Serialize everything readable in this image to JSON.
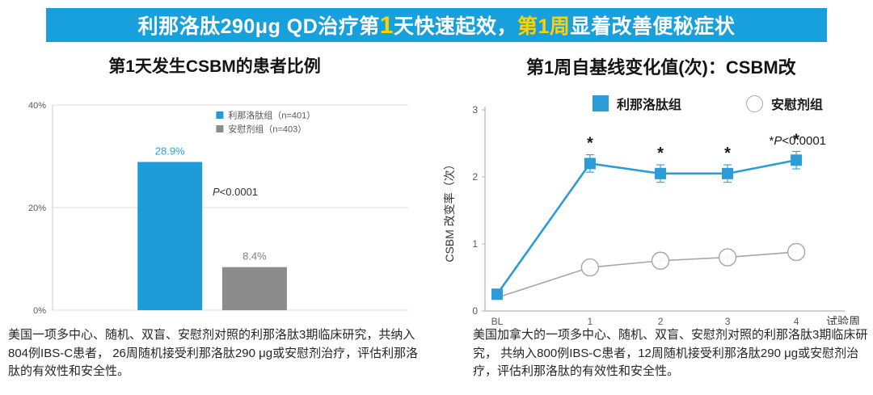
{
  "banner": {
    "bg": "#17A0DC",
    "text_color": "#FFFFFF",
    "highlight_color": "#FFD100",
    "segments": [
      {
        "text": "利那洛肽290μg QD治疗第",
        "highlight": false,
        "big": false
      },
      {
        "text": "1",
        "highlight": true,
        "big": true
      },
      {
        "text": "天快速起效，",
        "highlight": false,
        "big": false
      },
      {
        "text": "第1周",
        "highlight": true,
        "big": false
      },
      {
        "text": "显着改善便秘症状",
        "highlight": false,
        "big": false
      }
    ]
  },
  "left_chart": {
    "title": "第1天发生CSBM的患者比例",
    "footnote": "美国一项多中心、随机、双盲、安慰剂对照的利那洛肽3期临床研究，共纳入804例IBS-C患者， 26周随机接受利那洛肽290 μg或安慰剂治疗，评估利那洛肽的有效性和安全性。"
  },
  "right_chart": {
    "title": "第1周自基线变化值(次)：CSBM改",
    "footnote": "美国加拿大的一项多中心、随机、双盲、安慰剂对照的利那洛肽3期临床研究， 共纳入800例IBS-C患者，12周随机接受利那洛肽290 μg或安慰剂治疗，评估利那洛肽的有效性和安全性。"
  },
  "chart_data": [
    {
      "type": "bar",
      "title": "第1天发生CSBM的患者比例",
      "categories": [
        "利那洛肽组",
        "安慰剂组"
      ],
      "values": [
        28.9,
        8.4
      ],
      "value_labels": [
        "28.9%",
        "8.4%"
      ],
      "colors": [
        "#1E9CD8",
        "#8C8C8C"
      ],
      "label_colors": [
        "#2AA3DC",
        "#7F7F7F"
      ],
      "legend": [
        "利那洛肽组（n=401）",
        "安慰剂组（n=403）"
      ],
      "annotation": {
        "italic": "P",
        "rest": "<0.0001"
      },
      "yticks": [
        "0%",
        "20%",
        "40%"
      ],
      "ytick_values": [
        0,
        20,
        40
      ],
      "ylim": [
        0,
        40
      ],
      "xlabel": "",
      "ylabel": "",
      "grid": true,
      "legend_position": "top-center"
    },
    {
      "type": "line",
      "title": "第1周自基线变化值(次)：CSBM改",
      "x_categories": [
        "BL",
        "1",
        "2",
        "3",
        "4"
      ],
      "xlabel": "试验周",
      "ylabel": "CSBM 改变率（次）",
      "ylim": [
        0,
        3
      ],
      "yticks": [
        0,
        1,
        2,
        3
      ],
      "annotation": {
        "prefix": "*",
        "italic": "P",
        "rest": "<0.0001"
      },
      "grid": false,
      "legend_position": "top",
      "series": [
        {
          "name": "利那洛肽组",
          "marker": "square",
          "color": "#2B9CD8",
          "error": 0.13,
          "values": [
            0.25,
            2.2,
            2.05,
            2.05,
            2.25
          ],
          "significance": [
            false,
            true,
            true,
            true,
            true
          ]
        },
        {
          "name": "安慰剂组",
          "marker": "open-circle",
          "color": "#A6A6A6",
          "error": 0.12,
          "values": [
            0.2,
            0.65,
            0.75,
            0.8,
            0.88
          ]
        }
      ]
    }
  ]
}
